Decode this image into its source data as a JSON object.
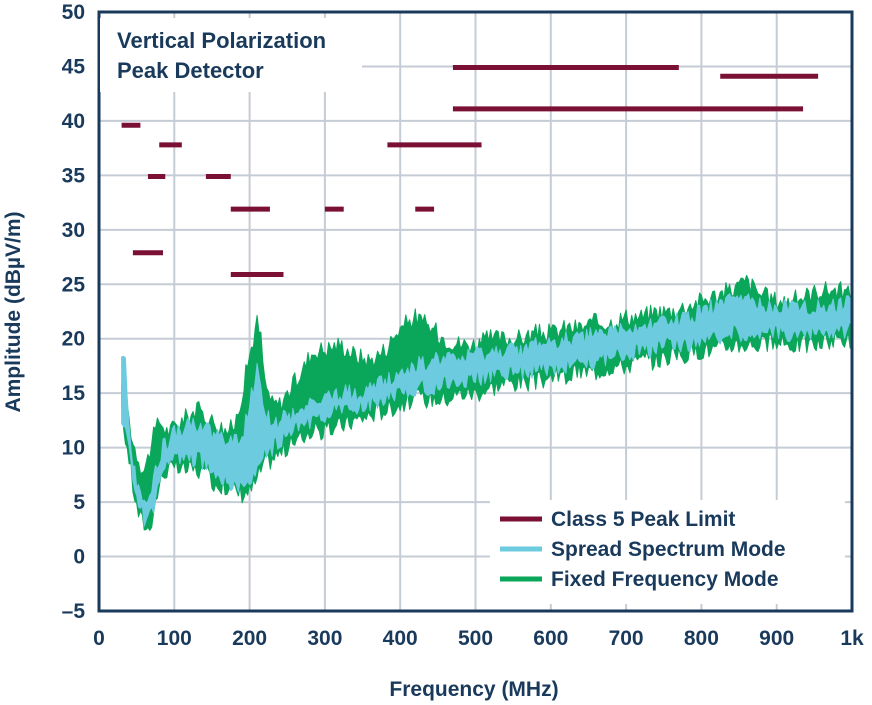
{
  "chart_data": {
    "type": "line",
    "title": "",
    "xlabel": "Frequency (MHz)",
    "ylabel": "Amplitude (dBµV/m)",
    "xlim": [
      0,
      1000
    ],
    "ylim": [
      -5,
      50
    ],
    "x_ticks": [
      0,
      100,
      200,
      300,
      400,
      500,
      600,
      700,
      800,
      900,
      1000
    ],
    "x_tick_labels": [
      "0",
      "100",
      "200",
      "300",
      "400",
      "500",
      "600",
      "700",
      "800",
      "900",
      "1k"
    ],
    "y_ticks": [
      -5,
      0,
      5,
      10,
      15,
      20,
      25,
      30,
      35,
      40,
      45,
      50
    ],
    "y_tick_labels": [
      "–5",
      "0",
      "5",
      "10",
      "15",
      "20",
      "25",
      "30",
      "35",
      "40",
      "45",
      "50"
    ],
    "grid": true,
    "annotation": [
      "Vertical Polarization",
      "Peak Detector"
    ],
    "legend_position": "bottom-right",
    "colors": {
      "limit": "#7a1033",
      "spread": "#6dcbe0",
      "fixed": "#0aa65a",
      "grid": "#c5ccd6",
      "axis": "#1a3a5c"
    },
    "series": [
      {
        "name": "Class 5 Peak Limit",
        "kind": "segments",
        "segments": [
          {
            "x": [
              30,
              55
            ],
            "y": 39.6
          },
          {
            "x": [
              80,
              110
            ],
            "y": 37.8
          },
          {
            "x": [
              65,
              88
            ],
            "y": 34.9
          },
          {
            "x": [
              142,
              175
            ],
            "y": 34.9
          },
          {
            "x": [
              175,
              227
            ],
            "y": 31.9
          },
          {
            "x": [
              300,
              325
            ],
            "y": 31.9
          },
          {
            "x": [
              420,
              445
            ],
            "y": 31.9
          },
          {
            "x": [
              45,
              85
            ],
            "y": 27.9
          },
          {
            "x": [
              175,
              245
            ],
            "y": 25.9
          },
          {
            "x": [
              383,
              508
            ],
            "y": 37.8
          },
          {
            "x": [
              470,
              770
            ],
            "y": 44.9
          },
          {
            "x": [
              470,
              935
            ],
            "y": 41.1
          },
          {
            "x": [
              825,
              955
            ],
            "y": 44.1
          }
        ]
      },
      {
        "name": "Spread Spectrum Mode",
        "kind": "band",
        "x": [
          30,
          35,
          40,
          45,
          50,
          55,
          60,
          65,
          70,
          75,
          80,
          85,
          90,
          95,
          100,
          110,
          120,
          130,
          140,
          150,
          160,
          170,
          180,
          190,
          200,
          205,
          210,
          215,
          220,
          230,
          240,
          250,
          260,
          270,
          280,
          290,
          300,
          320,
          340,
          360,
          380,
          400,
          420,
          440,
          460,
          480,
          500,
          520,
          540,
          560,
          580,
          600,
          620,
          640,
          660,
          680,
          700,
          720,
          740,
          760,
          780,
          800,
          820,
          840,
          860,
          880,
          900,
          920,
          940,
          960,
          980,
          1000
        ],
        "upper": [
          18.6,
          17.5,
          12,
          9,
          7,
          6,
          5.5,
          5,
          6,
          8,
          9,
          10,
          10.5,
          11,
          11.5,
          11.5,
          12,
          12,
          12,
          11.5,
          11,
          10.5,
          10.5,
          11,
          14,
          15.5,
          17,
          15.5,
          13.5,
          12,
          12.5,
          13,
          13,
          13.5,
          14,
          14.5,
          14.5,
          15,
          15,
          15.5,
          16,
          16.5,
          17.5,
          18,
          18,
          18,
          18.5,
          18.5,
          19,
          19,
          19.5,
          19.5,
          20,
          20,
          20.5,
          20.5,
          21,
          21,
          21.5,
          21.5,
          22,
          22.5,
          23,
          23.5,
          23.5,
          23,
          23,
          23,
          23,
          23,
          23,
          23.5
        ],
        "lower": [
          13,
          12,
          10,
          7.5,
          5.5,
          4.5,
          3.5,
          3,
          4,
          5.5,
          7,
          8,
          8.5,
          9,
          9,
          9,
          9,
          9,
          8.5,
          8,
          7.5,
          7,
          6.5,
          6.5,
          7,
          7.5,
          8.5,
          9,
          9.5,
          10,
          10.5,
          11,
          11.5,
          12,
          12.5,
          13,
          13,
          13.5,
          13.5,
          14,
          14.5,
          15,
          15.5,
          15.5,
          16,
          16,
          16.5,
          16.5,
          17,
          17,
          17,
          17.5,
          17.5,
          18,
          18,
          18.5,
          18.5,
          19,
          19,
          19.5,
          19.5,
          20,
          20,
          20.5,
          20.5,
          20.5,
          20.5,
          20.5,
          20.5,
          20.5,
          20.5,
          21
        ]
      },
      {
        "name": "Fixed Frequency Mode",
        "kind": "band",
        "x": [
          30,
          35,
          40,
          45,
          50,
          55,
          60,
          65,
          70,
          75,
          80,
          85,
          90,
          95,
          100,
          110,
          120,
          130,
          140,
          150,
          160,
          170,
          180,
          190,
          200,
          205,
          210,
          215,
          220,
          230,
          240,
          250,
          260,
          270,
          280,
          290,
          300,
          320,
          340,
          360,
          380,
          400,
          420,
          440,
          460,
          480,
          500,
          520,
          540,
          560,
          580,
          600,
          620,
          640,
          660,
          680,
          700,
          720,
          740,
          760,
          780,
          800,
          820,
          840,
          860,
          880,
          900,
          920,
          940,
          960,
          980,
          1000
        ],
        "upper": [
          15,
          16,
          12.5,
          10.5,
          9.5,
          8.5,
          8,
          9,
          10.5,
          11.5,
          12.5,
          12,
          11.5,
          11.5,
          12,
          12.5,
          13,
          13.5,
          13,
          12.5,
          12,
          11.5,
          12,
          15,
          18.5,
          20,
          21.5,
          20,
          16,
          14,
          14,
          15,
          16,
          17,
          18.5,
          19,
          19,
          19.5,
          18.5,
          18,
          19,
          21,
          22,
          21,
          20,
          19.5,
          19.5,
          20,
          20,
          20,
          20.5,
          20.5,
          21,
          21,
          21.5,
          21.5,
          22,
          22,
          22.5,
          22.5,
          23,
          23.5,
          24,
          24.5,
          25.3,
          24,
          23.5,
          23.5,
          24,
          24.5,
          24.5,
          24
        ],
        "lower": [
          13,
          11,
          9,
          6.5,
          4.5,
          3.5,
          3,
          2.5,
          3.5,
          5,
          6.5,
          7.5,
          8,
          8,
          8,
          8,
          8,
          8,
          7.5,
          7,
          6.5,
          6.5,
          6,
          5.8,
          6,
          6.5,
          7,
          8,
          8.5,
          9,
          9.5,
          10,
          10.5,
          11,
          11.5,
          11.5,
          11.5,
          12,
          12.5,
          13,
          13.5,
          14,
          14.5,
          14.5,
          14.5,
          15,
          15,
          15.5,
          16,
          16,
          16,
          16.5,
          16.5,
          17,
          17,
          17.5,
          17.5,
          18,
          18,
          18.5,
          18.5,
          19,
          19,
          19.5,
          19.5,
          19.5,
          19.5,
          19.5,
          19.5,
          19.5,
          20,
          20
        ]
      }
    ]
  }
}
